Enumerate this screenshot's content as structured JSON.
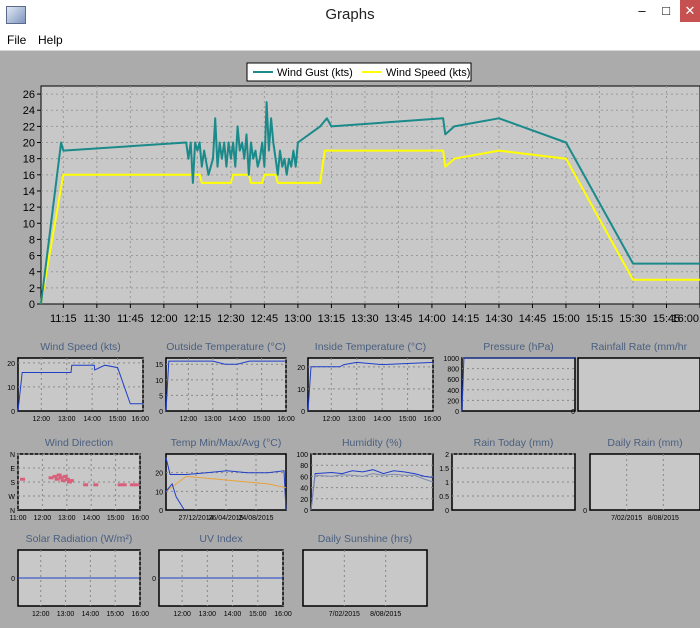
{
  "window": {
    "title": "Graphs",
    "minimize": "–",
    "maximize": "□",
    "close": "✕"
  },
  "menu": {
    "file": "File",
    "help": "Help"
  },
  "colors": {
    "gust": "#1a8a8a",
    "speed": "#ffff00",
    "blue": "#1f3fc8",
    "orange": "#e8a23c",
    "pink": "#d9607a",
    "plot_bg": "#c8c8c8",
    "grid": "#999999"
  },
  "chart_data": [
    {
      "id": "main",
      "type": "line",
      "legend_position": "top-center",
      "grid": true,
      "ylim": [
        0,
        27
      ],
      "xlim": [
        "11:05",
        "16:00"
      ],
      "yticks": [
        0,
        2,
        4,
        6,
        8,
        10,
        12,
        14,
        16,
        18,
        20,
        22,
        24,
        26
      ],
      "xticks": [
        "11:15",
        "11:30",
        "11:45",
        "12:00",
        "12:15",
        "12:30",
        "12:45",
        "13:00",
        "13:15",
        "13:30",
        "13:45",
        "14:00",
        "14:15",
        "14:30",
        "14:45",
        "15:00",
        "15:15",
        "15:30",
        "15:45",
        "16:00"
      ],
      "series": [
        {
          "name": "Wind Gust (kts)",
          "color": "#1a8a8a",
          "points": [
            [
              "11:05",
              0
            ],
            [
              "11:14",
              20
            ],
            [
              "11:15",
              19
            ],
            [
              "12:10",
              20
            ],
            [
              "12:11",
              18
            ],
            [
              "12:12",
              20
            ],
            [
              "12:13",
              15
            ],
            [
              "12:14",
              20
            ],
            [
              "12:15",
              19
            ],
            [
              "12:16",
              20
            ],
            [
              "12:17",
              17
            ],
            [
              "12:18",
              19
            ],
            [
              "12:20",
              16
            ],
            [
              "12:22",
              18
            ],
            [
              "12:23",
              23
            ],
            [
              "12:24",
              17
            ],
            [
              "12:25",
              20
            ],
            [
              "12:26",
              18
            ],
            [
              "12:27",
              20
            ],
            [
              "12:28",
              17
            ],
            [
              "12:29",
              20
            ],
            [
              "12:30",
              18
            ],
            [
              "12:31",
              20
            ],
            [
              "12:32",
              17
            ],
            [
              "12:33",
              22
            ],
            [
              "12:34",
              19
            ],
            [
              "12:35",
              20
            ],
            [
              "12:36",
              18
            ],
            [
              "12:37",
              21
            ],
            [
              "12:38",
              16
            ],
            [
              "12:39",
              20
            ],
            [
              "12:40",
              18
            ],
            [
              "12:41",
              19
            ],
            [
              "12:42",
              17
            ],
            [
              "12:43",
              18
            ],
            [
              "12:44",
              20
            ],
            [
              "12:45",
              17
            ],
            [
              "12:46",
              25
            ],
            [
              "12:47",
              19
            ],
            [
              "12:48",
              23
            ],
            [
              "12:49",
              20
            ],
            [
              "12:50",
              18
            ],
            [
              "12:51",
              16
            ],
            [
              "12:52",
              19
            ],
            [
              "12:53",
              17
            ],
            [
              "12:54",
              18
            ],
            [
              "12:55",
              16
            ],
            [
              "12:56",
              18
            ],
            [
              "12:57",
              17
            ],
            [
              "12:58",
              19
            ],
            [
              "12:59",
              17
            ],
            [
              "13:00",
              20
            ],
            [
              "13:10",
              22
            ],
            [
              "13:13",
              23
            ],
            [
              "13:15",
              22
            ],
            [
              "14:05",
              23
            ],
            [
              "14:06",
              21
            ],
            [
              "14:10",
              22
            ],
            [
              "14:30",
              23
            ],
            [
              "15:00",
              20
            ],
            [
              "15:30",
              5
            ],
            [
              "16:00",
              5
            ]
          ]
        },
        {
          "name": "Wind Speed (kts)",
          "color": "#ffff00",
          "points": [
            [
              "11:05",
              0
            ],
            [
              "11:15",
              16
            ],
            [
              "12:16",
              16
            ],
            [
              "12:17",
              15
            ],
            [
              "12:30",
              15
            ],
            [
              "12:31",
              16
            ],
            [
              "12:38",
              16
            ],
            [
              "12:39",
              15
            ],
            [
              "12:44",
              15
            ],
            [
              "12:45",
              16
            ],
            [
              "12:50",
              16
            ],
            [
              "12:51",
              15
            ],
            [
              "13:10",
              15
            ],
            [
              "13:12",
              19
            ],
            [
              "14:05",
              19
            ],
            [
              "14:06",
              17
            ],
            [
              "14:10",
              18
            ],
            [
              "14:30",
              19
            ],
            [
              "15:00",
              18
            ],
            [
              "15:30",
              3
            ],
            [
              "16:00",
              3
            ]
          ]
        }
      ]
    },
    {
      "id": "wind-speed",
      "title": "Wind Speed (kts)",
      "type": "line",
      "ylim": [
        0,
        22
      ],
      "yticks": [
        0,
        10,
        20
      ],
      "xticks": [
        "12:00",
        "13:00",
        "14:00",
        "15:00",
        "16:00"
      ],
      "xlim": [
        "11:05",
        "16:00"
      ],
      "series": [
        {
          "color": "#1f3fc8",
          "points": [
            [
              "11:05",
              0
            ],
            [
              "11:15",
              16
            ],
            [
              "13:10",
              16
            ],
            [
              "13:12",
              19
            ],
            [
              "14:05",
              19
            ],
            [
              "14:06",
              17
            ],
            [
              "14:30",
              19
            ],
            [
              "15:00",
              18
            ],
            [
              "15:30",
              3
            ],
            [
              "16:00",
              3
            ]
          ]
        }
      ]
    },
    {
      "id": "outside-temperature",
      "title": "Outside Temperature (°C)",
      "type": "line",
      "ylim": [
        0,
        17
      ],
      "yticks": [
        0,
        5,
        10,
        15
      ],
      "xticks": [
        "12:00",
        "13:00",
        "14:00",
        "15:00",
        "16:00"
      ],
      "xlim": [
        "11:05",
        "16:00"
      ],
      "series": [
        {
          "color": "#1f3fc8",
          "points": [
            [
              "11:05",
              0
            ],
            [
              "11:12",
              16
            ],
            [
              "13:00",
              16
            ],
            [
              "13:30",
              15
            ],
            [
              "14:00",
              15
            ],
            [
              "14:30",
              16
            ],
            [
              "16:00",
              16
            ]
          ]
        }
      ]
    },
    {
      "id": "inside-temperature",
      "title": "Inside Temperature (°C)",
      "type": "line",
      "ylim": [
        0,
        24
      ],
      "yticks": [
        0,
        10,
        20
      ],
      "xticks": [
        "12:00",
        "13:00",
        "14:00",
        "15:00",
        "16:00"
      ],
      "xlim": [
        "11:05",
        "16:00"
      ],
      "series": [
        {
          "color": "#1f3fc8",
          "points": [
            [
              "11:05",
              0
            ],
            [
              "11:12",
              20
            ],
            [
              "12:20",
              20
            ],
            [
              "12:30",
              21
            ],
            [
              "13:00",
              22
            ],
            [
              "14:00",
              21
            ],
            [
              "16:00",
              22
            ]
          ]
        }
      ]
    },
    {
      "id": "pressure",
      "title": "Pressure (hPa)",
      "type": "line",
      "ylim": [
        0,
        1000
      ],
      "yticks": [
        0,
        200,
        400,
        600,
        800,
        1000
      ],
      "xticks": [],
      "xlim": [
        "11:05",
        "16:00"
      ],
      "series": [
        {
          "color": "#1f3fc8",
          "points": [
            [
              "11:05",
              0
            ],
            [
              "11:10",
              1000
            ],
            [
              "16:00",
              1000
            ]
          ]
        }
      ]
    },
    {
      "id": "rainfall-rate",
      "title": "Rainfall Rate (mm/hr",
      "type": "line",
      "ylim": [
        0,
        1
      ],
      "yticks": [
        0
      ],
      "xticks": [],
      "series": []
    },
    {
      "id": "wind-direction",
      "title": "Wind Direction",
      "type": "scatter",
      "ylim": [
        0,
        4
      ],
      "yticks": [
        "N",
        "W",
        "S",
        "E",
        "N"
      ],
      "xticks": [
        "11:00",
        "12:00",
        "13:00",
        "14:00",
        "15:00",
        "16:00"
      ],
      "xlim": [
        "11:00",
        "16:00"
      ],
      "series": [
        {
          "color": "#d9607a",
          "points": [
            [
              "11:10",
              2.2
            ],
            [
              "12:20",
              2.3
            ],
            [
              "12:30",
              2.4
            ],
            [
              "12:35",
              2.2
            ],
            [
              "12:40",
              2.5
            ],
            [
              "12:45",
              2.3
            ],
            [
              "12:50",
              2.1
            ],
            [
              "12:55",
              2.4
            ],
            [
              "13:00",
              2.2
            ],
            [
              "13:05",
              2.0
            ],
            [
              "13:10",
              2.1
            ],
            [
              "13:45",
              1.8
            ],
            [
              "14:10",
              1.8
            ],
            [
              "15:10",
              1.8
            ],
            [
              "15:20",
              1.8
            ],
            [
              "15:40",
              1.8
            ],
            [
              "15:50",
              1.8
            ]
          ]
        }
      ]
    },
    {
      "id": "temp-min-max-avg",
      "title": "Temp Min/Max/Avg (°C)",
      "type": "line",
      "ylim": [
        0,
        30
      ],
      "yticks": [
        0,
        10,
        20
      ],
      "xticks": [
        "27/12/2014",
        "26/04/2015",
        "24/08/2015"
      ],
      "series": [
        {
          "color": "#1f3fc8",
          "points": [
            [
              0,
              28
            ],
            [
              4,
              19
            ],
            [
              20,
              19
            ],
            [
              40,
              20
            ],
            [
              60,
              21
            ],
            [
              80,
              20
            ],
            [
              100,
              20
            ],
            [
              116,
              21
            ],
            [
              118,
              0
            ]
          ]
        },
        {
          "color": "#e8a23c",
          "points": [
            [
              0,
              10
            ],
            [
              20,
              18
            ],
            [
              40,
              17
            ],
            [
              60,
              16
            ],
            [
              80,
              15
            ],
            [
              100,
              14
            ],
            [
              118,
              12
            ]
          ]
        },
        {
          "color": "#1f3fc8",
          "points": [
            [
              0,
              10
            ],
            [
              6,
              14
            ],
            [
              10,
              7
            ],
            [
              18,
              0
            ]
          ]
        }
      ]
    },
    {
      "id": "humidity",
      "title": "Humidity (%)",
      "type": "line",
      "ylim": [
        0,
        100
      ],
      "yticks": [
        0,
        20,
        40,
        60,
        80,
        100
      ],
      "xticks": [],
      "series": [
        {
          "color": "#1f3fc8",
          "points": [
            [
              0,
              0
            ],
            [
              4,
              65
            ],
            [
              20,
              67
            ],
            [
              30,
              65
            ],
            [
              40,
              70
            ],
            [
              50,
              68
            ],
            [
              60,
              72
            ],
            [
              70,
              65
            ],
            [
              80,
              70
            ],
            [
              90,
              68
            ],
            [
              100,
              65
            ],
            [
              110,
              60
            ],
            [
              118,
              58
            ]
          ]
        },
        {
          "color": "#7a8ab0",
          "points": [
            [
              0,
              0
            ],
            [
              4,
              62
            ],
            [
              20,
              60
            ],
            [
              30,
              63
            ],
            [
              40,
              62
            ],
            [
              50,
              60
            ],
            [
              60,
              65
            ],
            [
              70,
              62
            ],
            [
              80,
              64
            ],
            [
              90,
              62
            ],
            [
              100,
              62
            ],
            [
              110,
              55
            ],
            [
              118,
              50
            ]
          ]
        }
      ]
    },
    {
      "id": "rain-today",
      "title": "Rain Today (mm)",
      "type": "line",
      "ylim": [
        0,
        2
      ],
      "yticks": [
        0,
        0.5,
        1,
        1.5,
        2
      ],
      "xticks": [],
      "series": []
    },
    {
      "id": "daily-rain",
      "title": "Daily Rain (mm)",
      "type": "line",
      "ylim": [
        0,
        1
      ],
      "yticks": [
        0
      ],
      "xticks": [
        "7/02/2015",
        "8/08/2015"
      ],
      "series": []
    },
    {
      "id": "solar-radiation",
      "title": "Solar Radiation (W/m²)",
      "type": "line",
      "ylim": [
        -1,
        1
      ],
      "yticks": [
        0
      ],
      "xticks": [
        "12:00",
        "13:00",
        "14:00",
        "15:00",
        "16:00"
      ],
      "xlim": [
        "11:05",
        "16:00"
      ],
      "series": [
        {
          "color": "#1f3fc8",
          "points": [
            [
              "11:05",
              0
            ],
            [
              "16:00",
              0
            ]
          ]
        }
      ]
    },
    {
      "id": "uv-index",
      "title": "UV Index",
      "type": "line",
      "ylim": [
        -1,
        1
      ],
      "yticks": [
        0
      ],
      "xticks": [
        "12:00",
        "13:00",
        "14:00",
        "15:00",
        "16:00"
      ],
      "xlim": [
        "11:05",
        "16:00"
      ],
      "series": [
        {
          "color": "#1f3fc8",
          "points": [
            [
              "11:05",
              0
            ],
            [
              "16:00",
              0
            ]
          ]
        }
      ]
    },
    {
      "id": "daily-sunshine",
      "title": "Daily Sunshine (hrs)",
      "type": "line",
      "ylim": [
        0,
        1
      ],
      "yticks": [],
      "xticks": [
        "7/02/2015",
        "8/08/2015"
      ],
      "series": []
    }
  ]
}
